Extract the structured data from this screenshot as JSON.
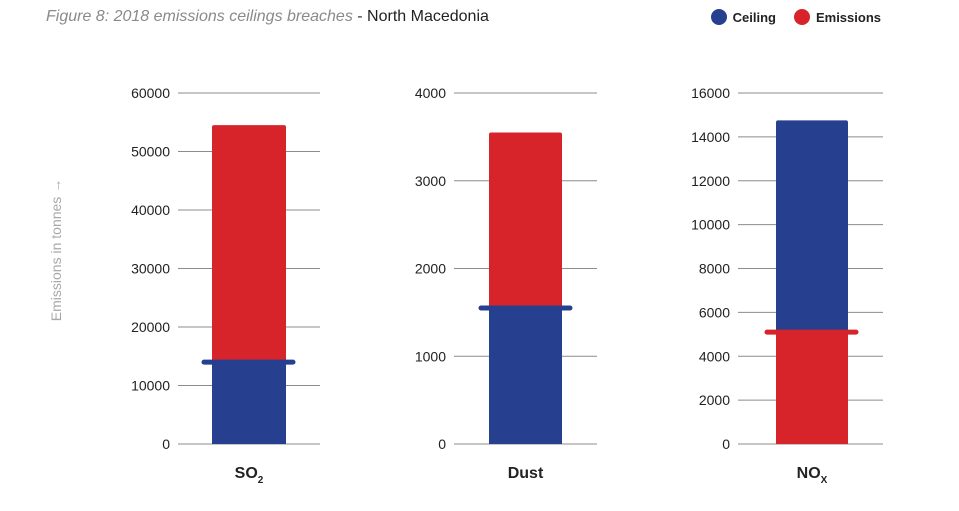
{
  "header": {
    "title": "Figure 8: 2018 emissions ceilings breaches",
    "separator": " - ",
    "subtitle": "North Macedonia"
  },
  "legend": {
    "ceiling_label": "Ceiling",
    "emissions_label": "Emissions",
    "ceiling_color": "#273f8f",
    "emissions_color": "#d7242b"
  },
  "y_axis_label": "Emissions in tonnes →",
  "chart_data": [
    {
      "type": "bar",
      "category": "SO2",
      "category_main": "SO",
      "category_sub": "2",
      "ticks": [
        0,
        10000,
        20000,
        30000,
        40000,
        50000,
        60000
      ],
      "ylim": [
        0,
        60000
      ],
      "series": [
        {
          "name": "Ceiling",
          "value": 14000
        },
        {
          "name": "Emissions",
          "value": 54500
        }
      ]
    },
    {
      "type": "bar",
      "category": "Dust",
      "category_main": "Dust",
      "category_sub": "",
      "ticks": [
        0,
        1000,
        2000,
        3000,
        4000
      ],
      "ylim": [
        0,
        4000
      ],
      "series": [
        {
          "name": "Ceiling",
          "value": 1550
        },
        {
          "name": "Emissions",
          "value": 3550
        }
      ]
    },
    {
      "type": "bar",
      "category": "NOx",
      "category_main": "NO",
      "category_sub": "X",
      "ticks": [
        0,
        2000,
        4000,
        6000,
        8000,
        10000,
        12000,
        14000,
        16000
      ],
      "ylim": [
        0,
        16000
      ],
      "series": [
        {
          "name": "Ceiling",
          "value": 14750
        },
        {
          "name": "Emissions",
          "value": 5100
        }
      ]
    }
  ]
}
